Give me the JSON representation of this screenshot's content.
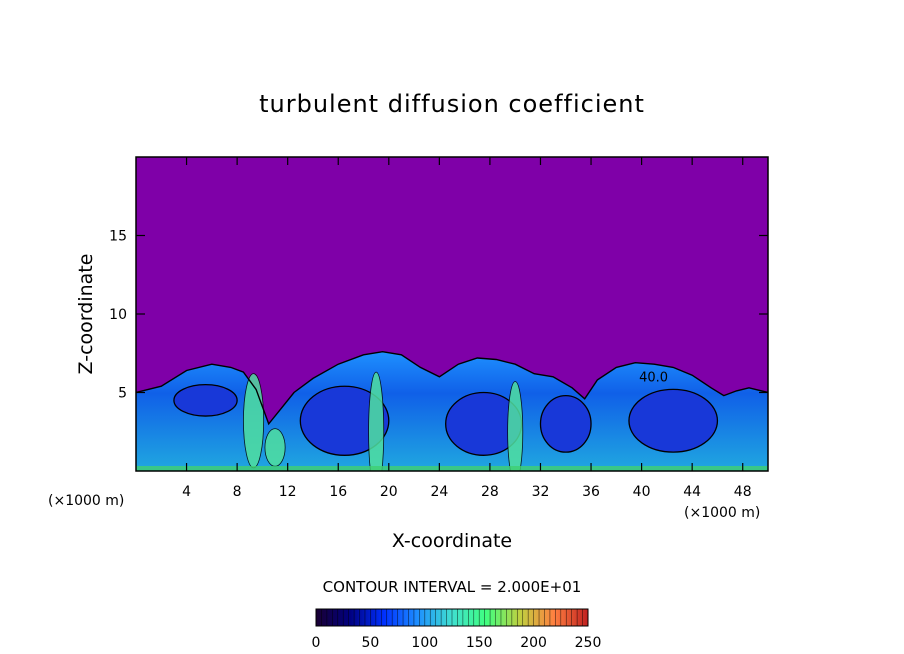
{
  "chart_data": {
    "type": "heatmap",
    "title": "turbulent diffusion coefficient",
    "xlabel": "X-coordinate",
    "ylabel": "Z-coordinate",
    "x_unit_left": "(×1000 m)",
    "x_unit_right": "(×1000 m)",
    "xlim": [
      0,
      50
    ],
    "ylim": [
      0,
      20
    ],
    "x_ticks": [
      4,
      8,
      12,
      16,
      20,
      24,
      28,
      32,
      36,
      40,
      44,
      48
    ],
    "y_ticks": [
      5,
      10,
      15
    ],
    "contour_interval_text": "CONTOUR INTERVAL = 2.000E+01",
    "contour_label": "40.0",
    "colorbar": {
      "min": 0,
      "max": 250,
      "ticks": [
        0,
        50,
        100,
        150,
        200,
        250
      ],
      "stops": [
        "#1a0033",
        "#000080",
        "#0030ff",
        "#1e90ff",
        "#40e0d0",
        "#40ff80",
        "#c0d040",
        "#ff8040",
        "#c02020"
      ]
    },
    "background_value_color": "#7f00a8",
    "boundary_layer_top": [
      [
        0,
        5.0
      ],
      [
        2,
        5.4
      ],
      [
        4,
        6.4
      ],
      [
        6,
        6.8
      ],
      [
        7.5,
        6.6
      ],
      [
        8.5,
        6.3
      ],
      [
        9.5,
        5.2
      ],
      [
        10.5,
        3.0
      ],
      [
        11.5,
        4.0
      ],
      [
        12.5,
        5.0
      ],
      [
        14,
        5.9
      ],
      [
        16,
        6.8
      ],
      [
        18,
        7.4
      ],
      [
        19.5,
        7.6
      ],
      [
        21,
        7.4
      ],
      [
        22.5,
        6.6
      ],
      [
        24,
        6.0
      ],
      [
        25.5,
        6.8
      ],
      [
        27,
        7.2
      ],
      [
        28.5,
        7.1
      ],
      [
        30,
        6.8
      ],
      [
        31.5,
        6.2
      ],
      [
        33,
        6.0
      ],
      [
        34.5,
        5.3
      ],
      [
        35.5,
        4.6
      ],
      [
        36.5,
        5.8
      ],
      [
        38,
        6.6
      ],
      [
        39.5,
        6.9
      ],
      [
        41,
        6.8
      ],
      [
        42.5,
        6.6
      ],
      [
        44,
        6.1
      ],
      [
        45.5,
        5.3
      ],
      [
        46.5,
        4.8
      ],
      [
        47.5,
        5.1
      ],
      [
        48.5,
        5.3
      ],
      [
        50,
        5.0
      ]
    ],
    "eddy_cores": [
      [
        5.5,
        4.5,
        2.5,
        1.0
      ],
      [
        16.5,
        3.2,
        3.5,
        2.2
      ],
      [
        27.5,
        3.0,
        3.0,
        2.0
      ],
      [
        34.0,
        3.0,
        2.0,
        1.8
      ],
      [
        42.5,
        3.2,
        3.5,
        2.0
      ]
    ],
    "updrafts": [
      [
        9.3,
        3.2,
        0.8,
        3.0
      ],
      [
        19.0,
        2.5,
        0.6,
        3.8
      ],
      [
        30.0,
        2.5,
        0.6,
        3.2
      ],
      [
        11.0,
        1.5,
        0.8,
        1.2
      ]
    ]
  }
}
